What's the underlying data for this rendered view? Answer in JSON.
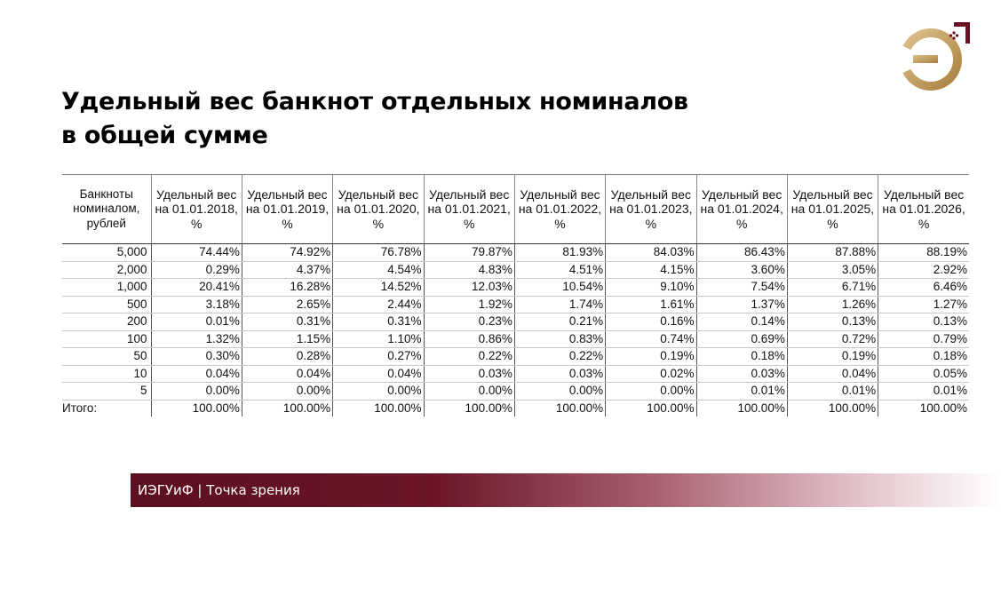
{
  "colors": {
    "brand": "#6b1024",
    "gold": "#c29a5a",
    "footer_text": "#ffffff"
  },
  "logo": {
    "icon": "ie-logo-icon"
  },
  "title": {
    "line1": "Удельный вес банкнот отдельных номиналов",
    "line2": "в общей сумме"
  },
  "table": {
    "first_header": "Банкноты номиналом, рублей",
    "year_headers": [
      "Удельный вес на 01.01.2018, %",
      "Удельный вес на 01.01.2019, %",
      "Удельный вес на 01.01.2020, %",
      "Удельный вес на 01.01.2021, %",
      "Удельный вес на 01.01.2022, %",
      "Удельный вес на 01.01.2023, %",
      "Удельный вес на 01.01.2024, %",
      "Удельный вес на 01.01.2025, %",
      "Удельный вес на 01.01.2026, %"
    ],
    "rows": [
      {
        "label": "5,000",
        "values": [
          "74.44%",
          "74.92%",
          "76.78%",
          "79.87%",
          "81.93%",
          "84.03%",
          "86.43%",
          "87.88%",
          "88.19%"
        ]
      },
      {
        "label": "2,000",
        "values": [
          "0.29%",
          "4.37%",
          "4.54%",
          "4.83%",
          "4.51%",
          "4.15%",
          "3.60%",
          "3.05%",
          "2.92%"
        ]
      },
      {
        "label": "1,000",
        "values": [
          "20.41%",
          "16.28%",
          "14.52%",
          "12.03%",
          "10.54%",
          "9.10%",
          "7.54%",
          "6.71%",
          "6.46%"
        ]
      },
      {
        "label": "500",
        "values": [
          "3.18%",
          "2.65%",
          "2.44%",
          "1.92%",
          "1.74%",
          "1.61%",
          "1.37%",
          "1.26%",
          "1.27%"
        ]
      },
      {
        "label": "200",
        "values": [
          "0.01%",
          "0.31%",
          "0.31%",
          "0.23%",
          "0.21%",
          "0.16%",
          "0.14%",
          "0.13%",
          "0.13%"
        ]
      },
      {
        "label": "100",
        "values": [
          "1.32%",
          "1.15%",
          "1.10%",
          "0.86%",
          "0.83%",
          "0.74%",
          "0.69%",
          "0.72%",
          "0.79%"
        ]
      },
      {
        "label": "50",
        "values": [
          "0.30%",
          "0.28%",
          "0.27%",
          "0.22%",
          "0.22%",
          "0.19%",
          "0.18%",
          "0.19%",
          "0.18%"
        ]
      },
      {
        "label": "10",
        "values": [
          "0.04%",
          "0.04%",
          "0.04%",
          "0.03%",
          "0.03%",
          "0.02%",
          "0.03%",
          "0.04%",
          "0.05%"
        ]
      },
      {
        "label": "5",
        "values": [
          "0.00%",
          "0.00%",
          "0.00%",
          "0.00%",
          "0.00%",
          "0.00%",
          "0.01%",
          "0.01%",
          "0.01%"
        ]
      }
    ],
    "total": {
      "label": "Итого:",
      "values": [
        "100.00%",
        "100.00%",
        "100.00%",
        "100.00%",
        "100.00%",
        "100.00%",
        "100.00%",
        "100.00%",
        "100.00%"
      ]
    }
  },
  "footer": {
    "text": "ИЭГУиФ | Точка зрения"
  }
}
